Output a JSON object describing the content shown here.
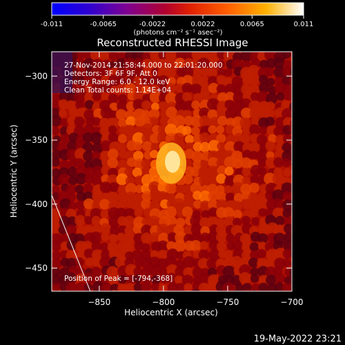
{
  "colorbar": {
    "ticks": [
      "-0.011",
      "-0.0065",
      "-0.0022",
      "0.0022",
      "0.0065",
      "0.011"
    ],
    "tick_values": [
      -0.011,
      -0.0065,
      -0.0022,
      0.0022,
      0.0065,
      0.011
    ],
    "range": [
      -0.011,
      0.011
    ],
    "units": "(photons cm⁻² s⁻¹ asec⁻²)",
    "colors": [
      "#0000ff",
      "#5000b0",
      "#800080",
      "#c00000",
      "#ff5000",
      "#ffa000",
      "#ffffff"
    ]
  },
  "chart_data": {
    "type": "heatmap",
    "title": "Reconstructed RHESSI Image",
    "xlabel": "Heliocentric X (arcsec)",
    "ylabel": "Heliocentric Y (arcsec)",
    "xlim": [
      -887,
      -700
    ],
    "ylim": [
      -468,
      -281
    ],
    "x_ticks": [
      -850,
      -800,
      -750,
      -700
    ],
    "y_ticks": [
      -300,
      -350,
      -400,
      -450
    ],
    "x_tick_labels": [
      "−850",
      "−800",
      "−750",
      "−700"
    ],
    "y_tick_labels": [
      "−300",
      "−350",
      "−400",
      "−450"
    ],
    "peak": {
      "x": -794,
      "y": -368
    },
    "limb_line": [
      [
        -887,
        -393
      ],
      [
        -857,
        -468
      ]
    ],
    "annotations": [
      "27-Nov-2014 21:58:44.000 to 22:01:20.000",
      "Detectors: 3F 6F 9F, Att 0",
      "Energy Range: 6.0 - 12.0 keV",
      "Clean    Total counts: 1.14E+04"
    ],
    "peak_label": "Position of Peak = [-794,-368]"
  },
  "footer": {
    "timestamp": "19-May-2022 23:21"
  }
}
